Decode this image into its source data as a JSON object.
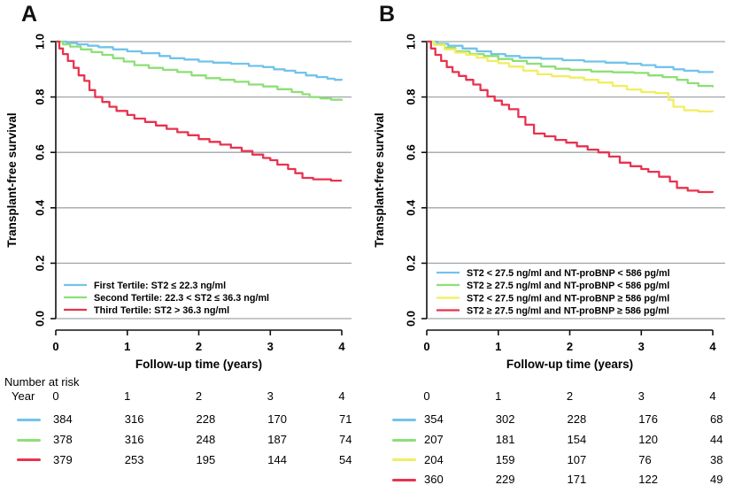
{
  "chart_data": [
    {
      "type": "line",
      "step": true,
      "panel_label": "A",
      "title": "",
      "xlabel": "Follow-up time (years)",
      "ylabel": "Transplant-free survival",
      "xlim": [
        0,
        4
      ],
      "ylim": [
        0.0,
        1.0
      ],
      "xticks": [
        0,
        1,
        2,
        3,
        4
      ],
      "yticks": [
        0.0,
        0.2,
        0.4,
        0.6,
        0.8,
        1.0
      ],
      "grid": "horizontal",
      "legend_position": "bottom-left",
      "series": [
        {
          "name": "First Tertile: ST2 ≤ 22.3 ng/ml",
          "color": "#72c3e9",
          "points": [
            [
              0,
              1.0
            ],
            [
              0.15,
              0.995
            ],
            [
              0.3,
              0.99
            ],
            [
              0.45,
              0.985
            ],
            [
              0.6,
              0.98
            ],
            [
              0.8,
              0.972
            ],
            [
              1.0,
              0.965
            ],
            [
              1.2,
              0.958
            ],
            [
              1.45,
              0.948
            ],
            [
              1.6,
              0.94
            ],
            [
              1.8,
              0.935
            ],
            [
              2.0,
              0.928
            ],
            [
              2.2,
              0.924
            ],
            [
              2.45,
              0.92
            ],
            [
              2.7,
              0.912
            ],
            [
              2.9,
              0.908
            ],
            [
              3.05,
              0.9
            ],
            [
              3.2,
              0.895
            ],
            [
              3.35,
              0.888
            ],
            [
              3.5,
              0.878
            ],
            [
              3.65,
              0.872
            ],
            [
              3.8,
              0.866
            ],
            [
              3.9,
              0.862
            ],
            [
              4.0,
              0.86
            ]
          ]
        },
        {
          "name": "Second Tertile: 22.3 < ST2 ≤ 36.3 ng/ml",
          "color": "#8ddf76",
          "points": [
            [
              0,
              1.0
            ],
            [
              0.1,
              0.99
            ],
            [
              0.2,
              0.982
            ],
            [
              0.35,
              0.972
            ],
            [
              0.5,
              0.962
            ],
            [
              0.65,
              0.952
            ],
            [
              0.8,
              0.94
            ],
            [
              0.95,
              0.928
            ],
            [
              1.1,
              0.915
            ],
            [
              1.3,
              0.905
            ],
            [
              1.5,
              0.898
            ],
            [
              1.7,
              0.89
            ],
            [
              1.9,
              0.878
            ],
            [
              2.1,
              0.868
            ],
            [
              2.3,
              0.862
            ],
            [
              2.5,
              0.855
            ],
            [
              2.7,
              0.845
            ],
            [
              2.9,
              0.838
            ],
            [
              3.1,
              0.828
            ],
            [
              3.3,
              0.818
            ],
            [
              3.45,
              0.81
            ],
            [
              3.55,
              0.8
            ],
            [
              3.7,
              0.795
            ],
            [
              3.85,
              0.79
            ],
            [
              4.0,
              0.787
            ]
          ]
        },
        {
          "name": "Third Tertile: ST2 > 36.3 ng/ml",
          "color": "#e8324f",
          "points": [
            [
              0,
              1.0
            ],
            [
              0.05,
              0.975
            ],
            [
              0.1,
              0.955
            ],
            [
              0.17,
              0.93
            ],
            [
              0.25,
              0.905
            ],
            [
              0.32,
              0.878
            ],
            [
              0.4,
              0.858
            ],
            [
              0.47,
              0.825
            ],
            [
              0.55,
              0.8
            ],
            [
              0.65,
              0.782
            ],
            [
              0.75,
              0.765
            ],
            [
              0.85,
              0.75
            ],
            [
              1.0,
              0.735
            ],
            [
              1.1,
              0.722
            ],
            [
              1.25,
              0.71
            ],
            [
              1.4,
              0.697
            ],
            [
              1.55,
              0.685
            ],
            [
              1.7,
              0.673
            ],
            [
              1.85,
              0.662
            ],
            [
              2.0,
              0.648
            ],
            [
              2.15,
              0.638
            ],
            [
              2.3,
              0.628
            ],
            [
              2.45,
              0.617
            ],
            [
              2.6,
              0.605
            ],
            [
              2.75,
              0.592
            ],
            [
              2.9,
              0.58
            ],
            [
              3.0,
              0.572
            ],
            [
              3.1,
              0.556
            ],
            [
              3.25,
              0.54
            ],
            [
              3.35,
              0.525
            ],
            [
              3.45,
              0.508
            ],
            [
              3.6,
              0.503
            ],
            [
              3.85,
              0.498
            ],
            [
              4.0,
              0.498
            ]
          ]
        }
      ]
    },
    {
      "type": "line",
      "step": true,
      "panel_label": "B",
      "title": "",
      "xlabel": "Follow-up time (years)",
      "ylabel": "Transplant-free survival",
      "xlim": [
        0,
        4
      ],
      "ylim": [
        0.0,
        1.0
      ],
      "xticks": [
        0,
        1,
        2,
        3,
        4
      ],
      "yticks": [
        0.0,
        0.2,
        0.4,
        0.6,
        0.8,
        1.0
      ],
      "grid": "horizontal",
      "legend_position": "bottom-left",
      "series": [
        {
          "name": "ST2 < 27.5 ng/ml and NT-proBNP < 586 pg/ml",
          "color": "#72c3e9",
          "points": [
            [
              0,
              1.0
            ],
            [
              0.15,
              0.992
            ],
            [
              0.3,
              0.985
            ],
            [
              0.5,
              0.975
            ],
            [
              0.7,
              0.965
            ],
            [
              0.9,
              0.955
            ],
            [
              1.1,
              0.948
            ],
            [
              1.3,
              0.942
            ],
            [
              1.6,
              0.938
            ],
            [
              1.9,
              0.933
            ],
            [
              2.2,
              0.928
            ],
            [
              2.5,
              0.924
            ],
            [
              2.8,
              0.92
            ],
            [
              3.0,
              0.915
            ],
            [
              3.2,
              0.908
            ],
            [
              3.45,
              0.9
            ],
            [
              3.6,
              0.895
            ],
            [
              3.8,
              0.89
            ],
            [
              4.0,
              0.888
            ]
          ]
        },
        {
          "name": "ST2 ≥ 27.5 ng/ml and NT-proBNP < 586 pg/ml",
          "color": "#8ddf76",
          "points": [
            [
              0,
              1.0
            ],
            [
              0.1,
              0.99
            ],
            [
              0.25,
              0.978
            ],
            [
              0.4,
              0.965
            ],
            [
              0.6,
              0.955
            ],
            [
              0.8,
              0.948
            ],
            [
              1.0,
              0.937
            ],
            [
              1.2,
              0.93
            ],
            [
              1.4,
              0.92
            ],
            [
              1.6,
              0.91
            ],
            [
              1.8,
              0.902
            ],
            [
              2.0,
              0.898
            ],
            [
              2.3,
              0.892
            ],
            [
              2.6,
              0.889
            ],
            [
              2.9,
              0.887
            ],
            [
              3.1,
              0.878
            ],
            [
              3.3,
              0.872
            ],
            [
              3.5,
              0.862
            ],
            [
              3.65,
              0.85
            ],
            [
              3.8,
              0.84
            ],
            [
              4.0,
              0.835
            ]
          ]
        },
        {
          "name": "ST2 < 27.5 ng/ml and NT-proBNP ≥ 586 pg/ml",
          "color": "#f1ee5f",
          "points": [
            [
              0,
              1.0
            ],
            [
              0.1,
              0.988
            ],
            [
              0.25,
              0.972
            ],
            [
              0.4,
              0.96
            ],
            [
              0.55,
              0.952
            ],
            [
              0.7,
              0.942
            ],
            [
              0.85,
              0.93
            ],
            [
              1.0,
              0.922
            ],
            [
              1.15,
              0.91
            ],
            [
              1.35,
              0.895
            ],
            [
              1.55,
              0.882
            ],
            [
              1.75,
              0.875
            ],
            [
              2.0,
              0.87
            ],
            [
              2.2,
              0.862
            ],
            [
              2.4,
              0.852
            ],
            [
              2.6,
              0.84
            ],
            [
              2.8,
              0.827
            ],
            [
              3.0,
              0.818
            ],
            [
              3.2,
              0.814
            ],
            [
              3.38,
              0.79
            ],
            [
              3.45,
              0.765
            ],
            [
              3.6,
              0.752
            ],
            [
              3.8,
              0.748
            ],
            [
              4.0,
              0.746
            ]
          ]
        },
        {
          "name": "ST2 ≥ 27.5 ng/ml and NT-proBNP ≥ 586 pg/ml",
          "color": "#e8324f",
          "points": [
            [
              0,
              1.0
            ],
            [
              0.06,
              0.975
            ],
            [
              0.12,
              0.952
            ],
            [
              0.2,
              0.93
            ],
            [
              0.28,
              0.908
            ],
            [
              0.36,
              0.89
            ],
            [
              0.45,
              0.876
            ],
            [
              0.55,
              0.862
            ],
            [
              0.65,
              0.845
            ],
            [
              0.75,
              0.825
            ],
            [
              0.85,
              0.802
            ],
            [
              0.95,
              0.787
            ],
            [
              1.05,
              0.772
            ],
            [
              1.15,
              0.756
            ],
            [
              1.28,
              0.728
            ],
            [
              1.38,
              0.7
            ],
            [
              1.5,
              0.668
            ],
            [
              1.65,
              0.658
            ],
            [
              1.8,
              0.645
            ],
            [
              1.95,
              0.635
            ],
            [
              2.1,
              0.622
            ],
            [
              2.25,
              0.61
            ],
            [
              2.4,
              0.6
            ],
            [
              2.55,
              0.585
            ],
            [
              2.7,
              0.563
            ],
            [
              2.85,
              0.55
            ],
            [
              3.0,
              0.54
            ],
            [
              3.1,
              0.53
            ],
            [
              3.25,
              0.512
            ],
            [
              3.4,
              0.495
            ],
            [
              3.5,
              0.472
            ],
            [
              3.65,
              0.462
            ],
            [
              3.8,
              0.457
            ],
            [
              4.0,
              0.455
            ]
          ]
        }
      ]
    }
  ],
  "risk_section": {
    "title": "Number at risk",
    "year_label": "Year",
    "tables": [
      {
        "panel": "A",
        "columns": [
          "0",
          "1",
          "2",
          "3",
          "4"
        ],
        "rows": [
          {
            "color": "#72c3e9",
            "values": [
              "384",
              "316",
              "228",
              "170",
              "71"
            ]
          },
          {
            "color": "#8ddf76",
            "values": [
              "378",
              "316",
              "248",
              "187",
              "74"
            ]
          },
          {
            "color": "#e8324f",
            "values": [
              "379",
              "253",
              "195",
              "144",
              "54"
            ]
          }
        ]
      },
      {
        "panel": "B",
        "columns": [
          "0",
          "1",
          "2",
          "3",
          "4"
        ],
        "rows": [
          {
            "color": "#72c3e9",
            "values": [
              "354",
              "302",
              "228",
              "176",
              "68"
            ]
          },
          {
            "color": "#8ddf76",
            "values": [
              "207",
              "181",
              "154",
              "120",
              "44"
            ]
          },
          {
            "color": "#f1ee5f",
            "values": [
              "204",
              "159",
              "107",
              "76",
              "38"
            ]
          },
          {
            "color": "#e8324f",
            "values": [
              "360",
              "229",
              "171",
              "122",
              "49"
            ]
          }
        ]
      }
    ]
  },
  "colors": {
    "grid": "#a0a6aa",
    "axis": "#111111"
  }
}
